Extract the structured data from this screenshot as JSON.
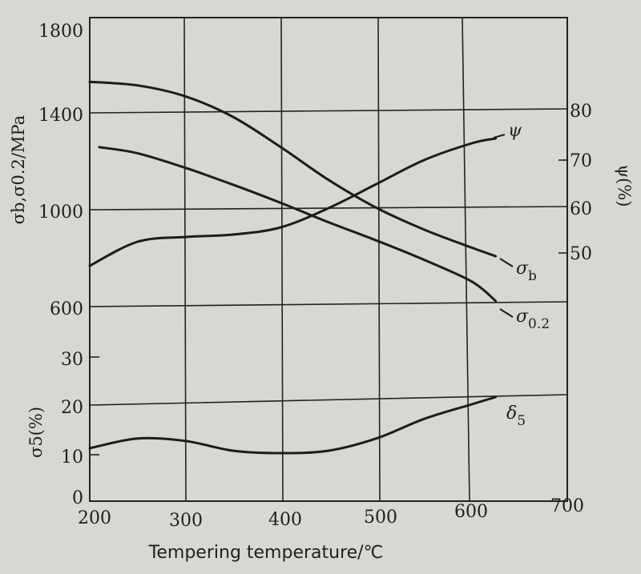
{
  "chart_data": {
    "type": "line",
    "xlabel": "Tempering temperature/℃",
    "x_ticks": [
      "200",
      "300",
      "400",
      "500",
      "600",
      "700"
    ],
    "xlim": [
      200,
      700
    ],
    "strength_axis": {
      "label": "σb,σ0.2/MPa",
      "ticks": [
        "1800",
        "1400",
        "1000",
        "600"
      ],
      "ylim": [
        600,
        1800
      ]
    },
    "psi_axis": {
      "label": "ψ(%)",
      "ticks": [
        "80",
        "70",
        "60",
        "50"
      ],
      "ylim": [
        40,
        90
      ]
    },
    "delta_axis": {
      "label": "σ5(%)",
      "ticks": [
        "30",
        "20",
        "10",
        "0"
      ],
      "ylim": [
        0,
        30
      ]
    },
    "series": [
      {
        "name": "σb",
        "axis": "strength",
        "points": [
          [
            200,
            1535
          ],
          [
            250,
            1520
          ],
          [
            300,
            1475
          ],
          [
            350,
            1390
          ],
          [
            400,
            1265
          ],
          [
            450,
            1130
          ],
          [
            500,
            1015
          ],
          [
            550,
            925
          ],
          [
            600,
            850
          ],
          [
            625,
            815
          ]
        ]
      },
      {
        "name": "σ0.2",
        "axis": "strength",
        "points": [
          [
            210,
            1265
          ],
          [
            250,
            1240
          ],
          [
            300,
            1180
          ],
          [
            350,
            1110
          ],
          [
            400,
            1035
          ],
          [
            450,
            955
          ],
          [
            500,
            880
          ],
          [
            550,
            800
          ],
          [
            600,
            710
          ],
          [
            625,
            630
          ]
        ]
      },
      {
        "name": "ψ",
        "axis": "psi",
        "points": [
          [
            200,
            48
          ],
          [
            250,
            53
          ],
          [
            300,
            54
          ],
          [
            350,
            54.5
          ],
          [
            400,
            56
          ],
          [
            450,
            60
          ],
          [
            500,
            65
          ],
          [
            550,
            70
          ],
          [
            600,
            73.5
          ],
          [
            625,
            74.5
          ]
        ]
      },
      {
        "name": "δ5",
        "axis": "delta",
        "points": [
          [
            200,
            11
          ],
          [
            250,
            13
          ],
          [
            300,
            12.5
          ],
          [
            350,
            10.5
          ],
          [
            400,
            10
          ],
          [
            450,
            10.5
          ],
          [
            500,
            13
          ],
          [
            550,
            17
          ],
          [
            600,
            20
          ],
          [
            625,
            21.5
          ]
        ]
      }
    ],
    "grid": true
  },
  "labels": {
    "psi": "ψ",
    "sigma_b_main": "σ",
    "sigma_b_sub": "b",
    "sigma_02_main": "σ",
    "sigma_02_sub": "0.2",
    "delta_main": "δ",
    "delta_sub": "5"
  }
}
